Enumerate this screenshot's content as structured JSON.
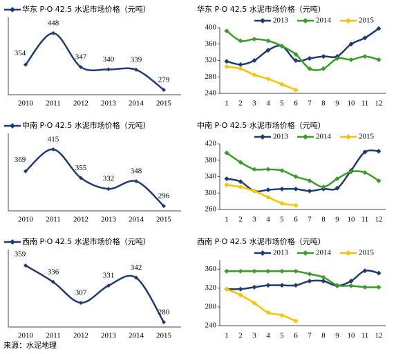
{
  "chart_data": [
    {
      "type": "line",
      "title": "华东 P·O 42.5 水泥市场价格（元吨）",
      "categories": [
        "2010",
        "2011",
        "2012",
        "2013",
        "2014",
        "2015"
      ],
      "smooth": true,
      "data_labels": true,
      "series": [
        {
          "color": "#1f3a6e",
          "values": [
            354,
            448,
            347,
            340,
            339,
            279
          ]
        }
      ]
    },
    {
      "type": "line",
      "title": "华东 P·O 42.5 水泥市场价格（元吨）",
      "categories": [
        "1",
        "2",
        "3",
        "4",
        "5",
        "6",
        "7",
        "8",
        "9",
        "10",
        "11",
        "12"
      ],
      "smooth": true,
      "ylim": [
        240,
        400
      ],
      "yticks": [
        240,
        280,
        320,
        360,
        400
      ],
      "series": [
        {
          "name": "2013",
          "color": "#1f3a6e",
          "values": [
            318,
            310,
            320,
            345,
            355,
            320,
            325,
            330,
            330,
            360,
            375,
            398
          ]
        },
        {
          "name": "2014",
          "color": "#3a9a2a",
          "values": [
            392,
            368,
            372,
            368,
            355,
            335,
            300,
            300,
            325,
            322,
            330,
            322
          ]
        },
        {
          "name": "2015",
          "color": "#f5c400",
          "values": [
            305,
            300,
            285,
            275,
            262,
            248,
            null,
            null,
            null,
            null,
            null,
            null
          ]
        }
      ]
    },
    {
      "type": "line",
      "title": "中南 P·O 42.5 水泥市场价格（元吨）",
      "categories": [
        "2010",
        "2011",
        "2012",
        "2013",
        "2014",
        "2015"
      ],
      "smooth": true,
      "data_labels": true,
      "series": [
        {
          "color": "#1f3a6e",
          "values": [
            369,
            415,
            355,
            332,
            348,
            296
          ]
        }
      ]
    },
    {
      "type": "line",
      "title": "中南 P·O 42.5 水泥市场价格（元吨）",
      "categories": [
        "1",
        "2",
        "3",
        "4",
        "5",
        "6",
        "7",
        "8",
        "9",
        "10",
        "11",
        "12"
      ],
      "smooth": true,
      "ylim": [
        260,
        420
      ],
      "yticks": [
        260,
        300,
        340,
        380,
        420
      ],
      "series": [
        {
          "name": "2013",
          "color": "#1f3a6e",
          "values": [
            335,
            328,
            305,
            308,
            310,
            310,
            305,
            310,
            312,
            355,
            400,
            402
          ]
        },
        {
          "name": "2014",
          "color": "#3a9a2a",
          "values": [
            398,
            375,
            358,
            358,
            355,
            340,
            330,
            315,
            335,
            352,
            350,
            330
          ]
        },
        {
          "name": "2015",
          "color": "#f5c400",
          "values": [
            320,
            315,
            305,
            290,
            275,
            270,
            null,
            null,
            null,
            null,
            null,
            null
          ]
        }
      ]
    },
    {
      "type": "line",
      "title": "西南 P·O 42.5 水泥市场价格（元吨）",
      "categories": [
        "2010",
        "2011",
        "2012",
        "2013",
        "2014",
        "2015"
      ],
      "smooth": true,
      "data_labels": true,
      "series": [
        {
          "color": "#1f3a6e",
          "values": [
            359,
            336,
            307,
            331,
            342,
            280
          ]
        }
      ]
    },
    {
      "type": "line",
      "title": "西南 P·O 42.5 水泥市场价格（元吨）",
      "categories": [
        "1",
        "2",
        "3",
        "4",
        "5",
        "6",
        "7",
        "8",
        "9",
        "10",
        "11",
        "12"
      ],
      "smooth": true,
      "ylim": [
        240,
        380
      ],
      "yticks": [
        240,
        280,
        320,
        360
      ],
      "series": [
        {
          "name": "2013",
          "color": "#1f3a6e",
          "values": [
            318,
            318,
            322,
            326,
            326,
            326,
            335,
            335,
            325,
            335,
            357,
            352
          ]
        },
        {
          "name": "2014",
          "color": "#3a9a2a",
          "values": [
            356,
            356,
            356,
            356,
            356,
            356,
            350,
            343,
            326,
            325,
            322,
            322
          ]
        },
        {
          "name": "2015",
          "color": "#f5c400",
          "values": [
            318,
            305,
            288,
            268,
            262,
            250,
            null,
            null,
            null,
            null,
            null,
            null
          ]
        }
      ]
    }
  ],
  "source": "来源：水泥地理"
}
